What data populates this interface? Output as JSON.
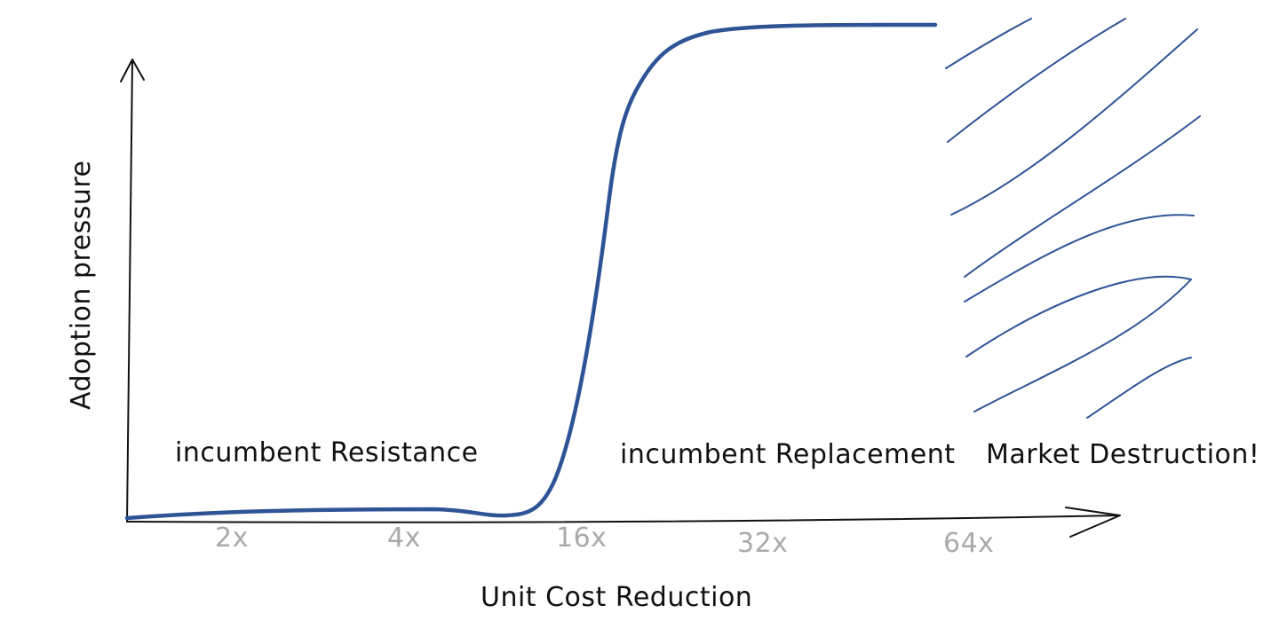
{
  "axes": {
    "x_title": "Unit Cost Reduction",
    "y_title": "Adoption pressure",
    "x_ticks": [
      "2x",
      "4x",
      "16x",
      "32x",
      "64x"
    ]
  },
  "regions": {
    "resistance": "incumbent Resistance",
    "replacement": "incumbent Replacement",
    "destruction": "Market Destruction!"
  },
  "colors": {
    "curve": "#2f5496",
    "hatch": "#2f5496",
    "axis": "#111111",
    "tick_text": "#aaaaaa"
  }
}
